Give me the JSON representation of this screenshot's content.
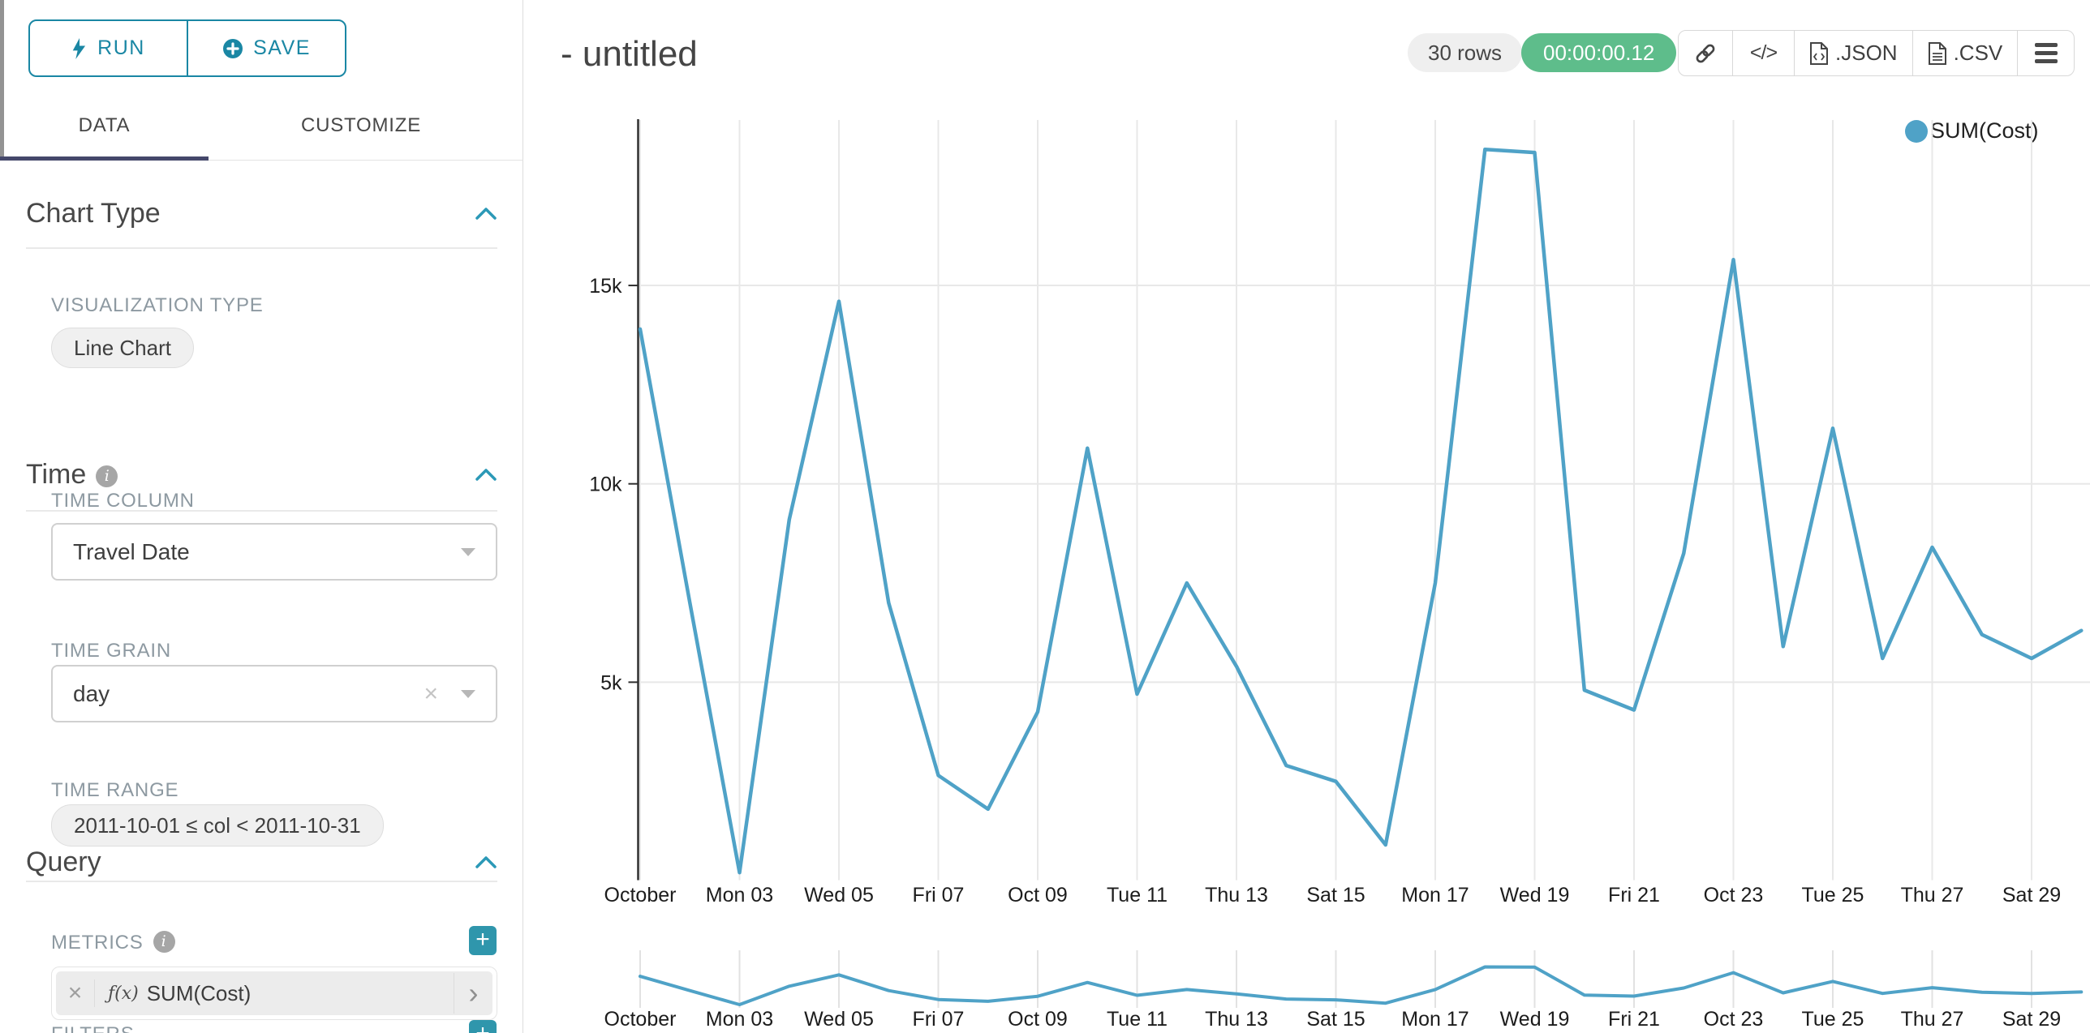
{
  "sidebar": {
    "run_label": "RUN",
    "save_label": "SAVE",
    "tab_data": "DATA",
    "tab_customize": "CUSTOMIZE",
    "chart_type": {
      "heading": "Chart Type",
      "viz_type_label": "VISUALIZATION TYPE",
      "viz_type_value": "Line Chart"
    },
    "time": {
      "heading": "Time",
      "column_label": "TIME COLUMN",
      "column_value": "Travel Date",
      "grain_label": "TIME GRAIN",
      "grain_value": "day",
      "range_label": "TIME RANGE",
      "range_value": "2011-10-01 ≤ col < 2011-10-31"
    },
    "query": {
      "heading": "Query",
      "metrics_label": "METRICS",
      "metric_fx": "ƒ(x)",
      "metric_value": "SUM(Cost)",
      "filters_label": "FILTERS"
    }
  },
  "header": {
    "title": "- untitled",
    "rows_badge": "30 rows",
    "timer_badge": "00:00:00.12",
    "export_json_label": ".JSON",
    "export_csv_label": ".CSV"
  },
  "legend": {
    "label": "SUM(Cost)",
    "color": "#4fa2c7"
  },
  "chart_data": {
    "type": "line",
    "title": "",
    "xlabel": "",
    "ylabel": "",
    "legend_position": "top-right",
    "grid": true,
    "line_color": "#4fa2c7",
    "n_points": 30,
    "x_tick_labels": [
      "October",
      "Mon 03",
      "Wed 05",
      "Fri 07",
      "Oct 09",
      "Tue 11",
      "Thu 13",
      "Sat 15",
      "Mon 17",
      "Wed 19",
      "Fri 21",
      "Oct 23",
      "Tue 25",
      "Thu 27",
      "Sat 29"
    ],
    "y_ticks": [
      {
        "value": 5000,
        "label": "5k"
      },
      {
        "value": 10000,
        "label": "10k"
      },
      {
        "value": 15000,
        "label": "15k"
      }
    ],
    "ylim": [
      0,
      19000
    ],
    "series": [
      {
        "name": "SUM(Cost)",
        "values": [
          13900,
          7000,
          200,
          9100,
          14600,
          7000,
          2650,
          1800,
          4250,
          10900,
          4700,
          7500,
          5400,
          2900,
          2500,
          900,
          7500,
          18430,
          18350,
          4800,
          4300,
          8250,
          15650,
          5900,
          11400,
          5600,
          8400,
          6200,
          5600,
          6300
        ]
      }
    ],
    "has_mini_map": true
  }
}
